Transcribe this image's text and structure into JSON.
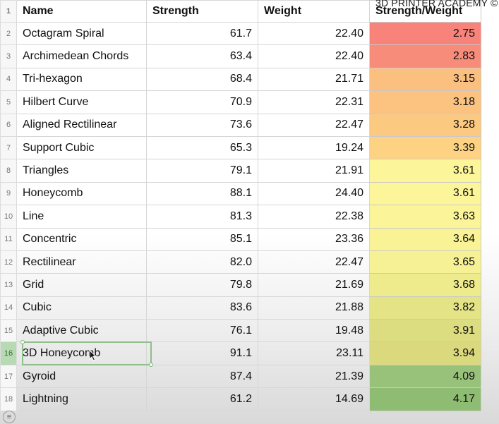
{
  "watermark": "3D PRINTER ACADEMY ©",
  "headers": {
    "row_number": "1",
    "name": "Name",
    "strength": "Strength",
    "weight": "Weight",
    "ratio": "Strength/Weight"
  },
  "rows": [
    {
      "row": "2",
      "name": "Octagram Spiral",
      "strength": "61.7",
      "weight": "22.40",
      "ratio": "2.75",
      "color": "#f8837a"
    },
    {
      "row": "3",
      "name": "Archimedean Chords",
      "strength": "63.4",
      "weight": "22.40",
      "ratio": "2.83",
      "color": "#f88c7b"
    },
    {
      "row": "4",
      "name": "Tri-hexagon",
      "strength": "68.4",
      "weight": "21.71",
      "ratio": "3.15",
      "color": "#fbc07f"
    },
    {
      "row": "5",
      "name": "Hilbert Curve",
      "strength": "70.9",
      "weight": "22.31",
      "ratio": "3.18",
      "color": "#fbc280"
    },
    {
      "row": "6",
      "name": "Aligned Rectilinear",
      "strength": "73.6",
      "weight": "22.47",
      "ratio": "3.28",
      "color": "#fcc981"
    },
    {
      "row": "7",
      "name": "Support Cubic",
      "strength": "65.3",
      "weight": "19.24",
      "ratio": "3.39",
      "color": "#fdd383"
    },
    {
      "row": "8",
      "name": "Triangles",
      "strength": "79.1",
      "weight": "21.91",
      "ratio": "3.61",
      "color": "#fdf59a"
    },
    {
      "row": "9",
      "name": "Honeycomb",
      "strength": "88.1",
      "weight": "24.40",
      "ratio": "3.61",
      "color": "#fdf59a"
    },
    {
      "row": "10",
      "name": "Line",
      "strength": "81.3",
      "weight": "22.38",
      "ratio": "3.63",
      "color": "#fbf498"
    },
    {
      "row": "11",
      "name": "Concentric",
      "strength": "85.1",
      "weight": "23.36",
      "ratio": "3.64",
      "color": "#f9f396"
    },
    {
      "row": "12",
      "name": "Rectilinear",
      "strength": "82.0",
      "weight": "22.47",
      "ratio": "3.65",
      "color": "#f6f194"
    },
    {
      "row": "13",
      "name": "Grid",
      "strength": "79.8",
      "weight": "21.69",
      "ratio": "3.68",
      "color": "#eeeb8c"
    },
    {
      "row": "14",
      "name": "Cubic",
      "strength": "83.6",
      "weight": "21.88",
      "ratio": "3.82",
      "color": "#e4e487"
    },
    {
      "row": "15",
      "name": "Adaptive Cubic",
      "strength": "76.1",
      "weight": "19.48",
      "ratio": "3.91",
      "color": "#dcdc80"
    },
    {
      "row": "16",
      "name": "3D Honeycomb",
      "strength": "91.1",
      "weight": "23.11",
      "ratio": "3.94",
      "color": "#dad97e"
    },
    {
      "row": "17",
      "name": "Gyroid",
      "strength": "87.4",
      "weight": "21.39",
      "ratio": "4.09",
      "color": "#98c27a"
    },
    {
      "row": "18",
      "name": "Lightning",
      "strength": "61.2",
      "weight": "14.69",
      "ratio": "4.17",
      "color": "#8fbc73"
    }
  ],
  "selected_row": "16"
}
